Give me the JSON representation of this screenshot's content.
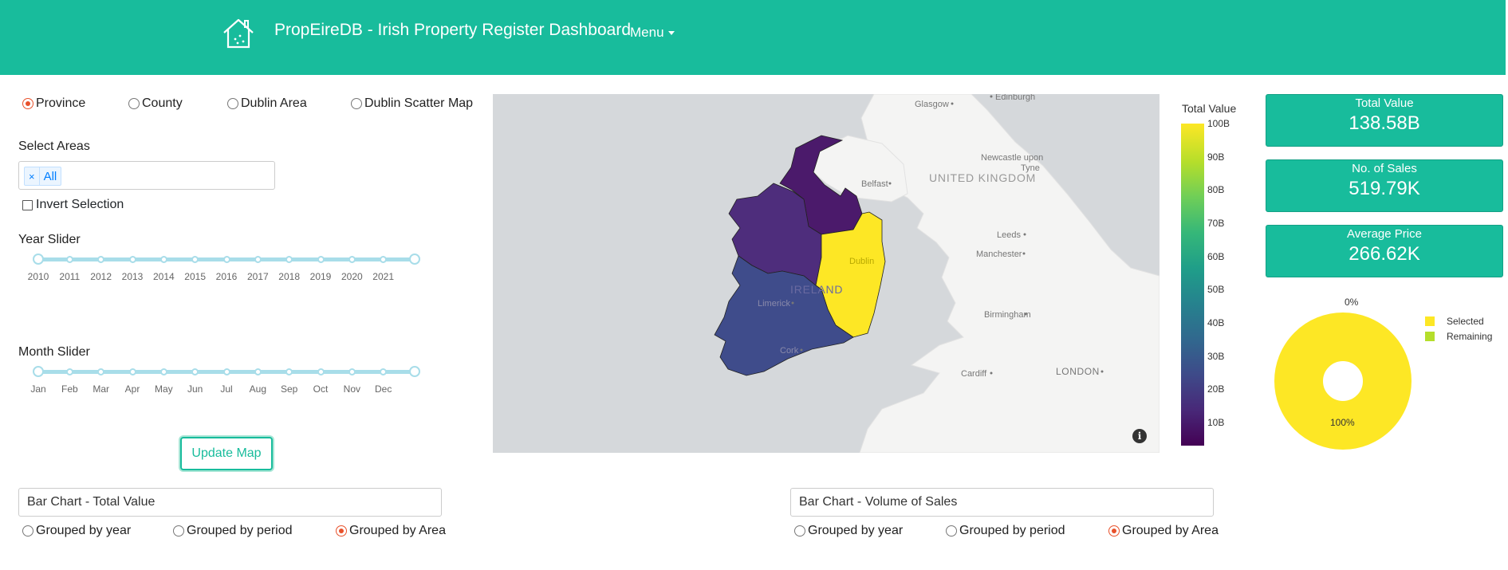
{
  "header": {
    "title": "PropEireDB - Irish Property Register Dashboard",
    "menu_label": "Menu",
    "icon": "house-icon"
  },
  "map_mode": {
    "options": [
      "Province",
      "County",
      "Dublin Area",
      "Dublin Scatter Map"
    ],
    "selected": "Province"
  },
  "area_select": {
    "label": "Select Areas",
    "tag": "All",
    "remove_symbol": "×"
  },
  "invert": {
    "label": "Invert Selection",
    "checked": false
  },
  "year_slider": {
    "label": "Year Slider",
    "marks": [
      "2010",
      "2011",
      "2012",
      "2013",
      "2014",
      "2015",
      "2016",
      "2017",
      "2018",
      "2019",
      "2020",
      "2021"
    ]
  },
  "month_slider": {
    "label": "Month Slider",
    "marks": [
      "Jan",
      "Feb",
      "Mar",
      "Apr",
      "May",
      "Jun",
      "Jul",
      "Aug",
      "Sep",
      "Oct",
      "Nov",
      "Dec"
    ]
  },
  "update_button": "Update Map",
  "map": {
    "labels": [
      "Glasgow",
      "Edinburgh",
      "Newcastle upon",
      "Tyne",
      "UNITED KINGDOM",
      "Belfast",
      "Leeds",
      "Manchester",
      "Dublin",
      "IRELAND",
      "Limerick",
      "Birmingham",
      "Cork",
      "Cardiff",
      "LONDON"
    ],
    "info_symbol": "i"
  },
  "colorbar": {
    "title": "Total Value",
    "ticks": [
      "100B",
      "90B",
      "80B",
      "70B",
      "60B",
      "50B",
      "40B",
      "30B",
      "20B",
      "10B"
    ],
    "range": [
      3,
      100
    ]
  },
  "stats": [
    {
      "title": "Total Value",
      "value": "138.58B"
    },
    {
      "title": "No. of Sales",
      "value": "519.79K"
    },
    {
      "title": "Average Price",
      "value": "266.62K"
    }
  ],
  "pie": {
    "label_top": "0%",
    "label_bottom": "100%",
    "legend": [
      {
        "name": "Selected",
        "color": "#fde725"
      },
      {
        "name": "Remaining",
        "color": "#b5de2b"
      }
    ],
    "values": [
      100,
      0
    ]
  },
  "bar_left": {
    "dropdown": "Bar Chart - Total Value",
    "options": [
      "Grouped by year",
      "Grouped by period",
      "Grouped by Area"
    ],
    "selected": "Grouped by Area"
  },
  "bar_right": {
    "dropdown": "Bar Chart - Volume of Sales",
    "options": [
      "Grouped by year",
      "Grouped by period",
      "Grouped by Area"
    ],
    "selected": "Grouped by Area"
  },
  "colors": {
    "accent": "#18bc9c",
    "radio_selected": "#e8512b",
    "province_connacht": "#4e2d7c",
    "province_ulster": "#4b1a6b",
    "province_leinster": "#fde725",
    "province_munster": "#3f4c8b"
  }
}
